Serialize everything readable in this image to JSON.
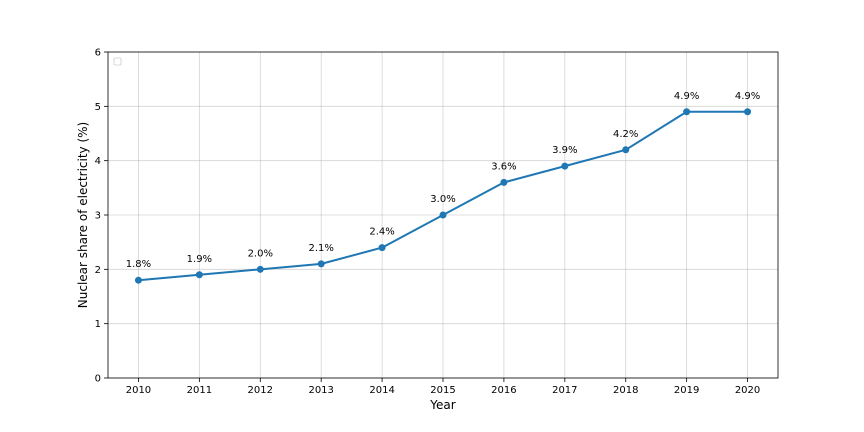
{
  "chart_data": {
    "type": "line",
    "title": "",
    "xlabel": "Year",
    "ylabel": "Nuclear share of electricity (%)",
    "x": [
      2010,
      2011,
      2012,
      2013,
      2014,
      2015,
      2016,
      2017,
      2018,
      2019,
      2020
    ],
    "series": [
      {
        "values": [
          1.8,
          1.9,
          2.0,
          2.1,
          2.4,
          3.0,
          3.6,
          3.9,
          4.2,
          4.9,
          4.9
        ],
        "labels": [
          "1.8%",
          "1.9%",
          "2.0%",
          "2.1%",
          "2.4%",
          "3.0%",
          "3.6%",
          "3.9%",
          "4.2%",
          "4.9%",
          "4.9%"
        ],
        "color": "#1f77b4"
      }
    ],
    "xticks": [
      "2010",
      "2011",
      "2012",
      "2013",
      "2014",
      "2015",
      "2016",
      "2017",
      "2018",
      "2019",
      "2020"
    ],
    "yticks": [
      "0",
      "1",
      "2",
      "3",
      "4",
      "5",
      "6"
    ],
    "ylim": [
      0,
      6
    ],
    "grid": true,
    "legend": {
      "placement": "top-left",
      "entries": []
    }
  }
}
